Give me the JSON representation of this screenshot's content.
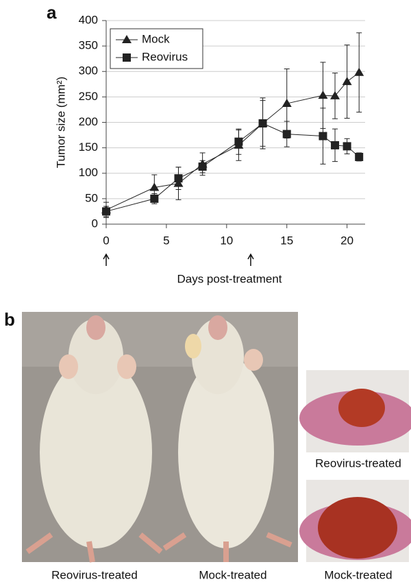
{
  "panel_a_label": "a",
  "panel_b_label": "b",
  "chart_data": {
    "type": "line",
    "x_label": "Days post-treatment",
    "y_label": "Tumor size (mm²)",
    "xlim": [
      0,
      21.5
    ],
    "xticks": [
      0,
      5,
      10,
      15,
      20
    ],
    "ylim": [
      0,
      400
    ],
    "yticks": [
      0,
      50,
      100,
      150,
      200,
      250,
      300,
      350,
      400
    ],
    "grid": true,
    "legend": "upper left",
    "treatment_days": [
      0,
      12
    ],
    "series": [
      {
        "name": "Mock",
        "color": "#222222",
        "marker": "triangle",
        "x": [
          0,
          4,
          6,
          8,
          11,
          13,
          15,
          18,
          19,
          20,
          21
        ],
        "values": [
          28,
          72,
          80,
          118,
          155,
          198,
          237,
          253,
          252,
          280,
          298
        ],
        "errors": [
          15,
          25,
          32,
          22,
          30,
          50,
          68,
          65,
          45,
          72,
          78
        ]
      },
      {
        "name": "Reovirus",
        "color": "#222222",
        "marker": "square",
        "x": [
          0,
          4,
          6,
          8,
          11,
          13,
          15,
          18,
          19,
          20,
          21
        ],
        "values": [
          25,
          50,
          90,
          113,
          162,
          198,
          177,
          173,
          155,
          153,
          132
        ],
        "errors": [
          10,
          10,
          22,
          12,
          25,
          45,
          25,
          55,
          32,
          15,
          8
        ]
      }
    ]
  },
  "photo_captions": [
    "Reovirus-treated",
    "Mock-treated",
    "Reovirus-treated",
    "Mock-treated"
  ]
}
